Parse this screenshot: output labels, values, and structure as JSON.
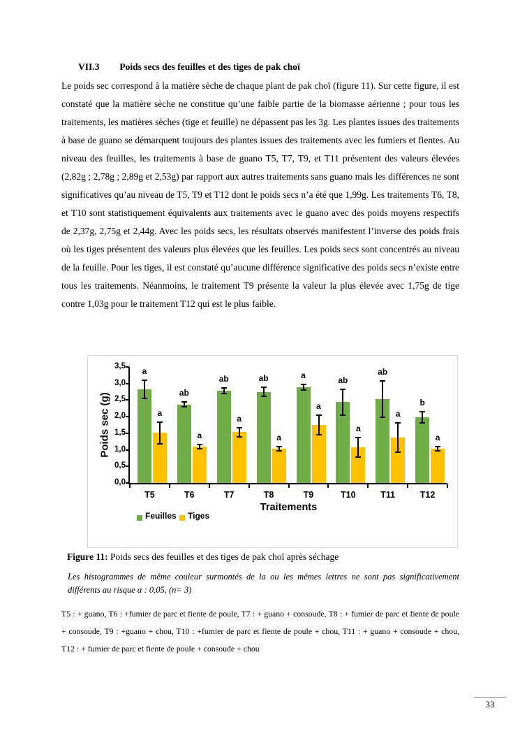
{
  "page": {
    "section_number": "VII.3",
    "section_title": "Poids secs des feuilles et des tiges de pak choï",
    "paragraph": "Le poids sec correspond à la matière sèche de chaque plant de pak choï (figure 11). Sur cette figure, il est constaté que la matière sèche ne constitue qu’une faible partie de la biomasse aérienne ; pour tous les traitements, les matières sèches (tige et feuille) ne dépassent pas les 3g. Les plantes issues des traitements à base de guano se démarquent toujours des plantes issues des traitements avec les fumiers et fientes. Au niveau des feuilles, les traitements à base de guano T5, T7, T9, et T11 présentent des valeurs élevées (2,82g ; 2,78g ; 2,89g et 2,53g) par rapport aux autres traitements sans guano mais les différences ne sont significatives qu’au niveau de T5, T9 et T12 dont le poids secs n’a été que 1,99g. Les traitements T6, T8, et T10 sont statistiquement équivalents aux traitements avec le guano avec des poids moyens respectifs de 2,37g, 2,75g et 2,44g. Avec les poids secs, les résultats observés manifestent l’inverse des poids frais où les tiges présentent des valeurs plus élevées que les feuilles. Les poids secs sont concentrés au niveau de la feuille. Pour les tiges, il est constaté qu’aucune différence significative des poids secs n’existe entre tous les traitements. Néanmoins, le traitement T9 présente la valeur la plus élevée avec 1,75g de tige contre 1,03g pour le traitement T12 qui est le plus faible.",
    "figure_caption_label": "Figure 11:",
    "figure_caption_text": " Poids secs des feuilles et des tiges de pak choï après séchage",
    "note_italic": "Les histogrammes de même couleur surmontés de la ou les mêmes lettres ne sont pas significativement différents au risque α : 0,05, (n= 3)",
    "footnote": "T5 : + guano, T6 : +fumier de parc et fiente de poule, T7 : + guano + consoude, T8 : + fumier de parc et fiente de poule + consoude, T9 : +guano + chou, T10 : +fumier de parc et fiente de poule + chou, T11 : + guano + consoude + chou, T12 : + fumier de parc et fiente de poule + consoude + chou",
    "page_number": "33"
  },
  "chart_data": {
    "type": "bar",
    "title": "",
    "categories": [
      "T5",
      "T6",
      "T7",
      "T8",
      "T9",
      "T10",
      "T11",
      "T12"
    ],
    "series": [
      {
        "name": "Feuilles",
        "color": "#70AD47",
        "values": [
          2.82,
          2.37,
          2.78,
          2.75,
          2.89,
          2.44,
          2.53,
          1.99
        ],
        "err_low": [
          2.55,
          2.3,
          2.69,
          2.61,
          2.81,
          2.05,
          1.98,
          1.82
        ],
        "err_high": [
          3.09,
          2.45,
          2.87,
          2.89,
          2.97,
          2.83,
          3.08,
          2.16
        ],
        "letters": [
          "a",
          "ab",
          "ab",
          "ab",
          "a",
          "ab",
          "ab",
          "b"
        ]
      },
      {
        "name": "Tiges",
        "color": "#FFC000",
        "values": [
          1.51,
          1.1,
          1.53,
          1.04,
          1.75,
          1.08,
          1.37,
          1.03
        ],
        "err_low": [
          1.18,
          1.03,
          1.39,
          0.98,
          1.46,
          0.79,
          0.92,
          0.97
        ],
        "err_high": [
          1.84,
          1.17,
          1.67,
          1.1,
          2.04,
          1.37,
          1.82,
          1.09
        ],
        "letters": [
          "a",
          "a",
          "a",
          "a",
          "a",
          "a",
          "a",
          "a"
        ]
      }
    ],
    "xlabel": "Traitements",
    "ylabel": "Poids sec (g)",
    "ylim": [
      0,
      3.5
    ],
    "ytick_step": 0.5,
    "ytick_labels": [
      "0,0",
      "0,5",
      "1,0",
      "1,5",
      "2,0",
      "2,5",
      "3,0",
      "3,5"
    ],
    "legend_position": "bottom-left",
    "grid": false,
    "frame_color": "#d9d9d9",
    "axis_color": "#000000",
    "error_bar_color": "#000000"
  }
}
